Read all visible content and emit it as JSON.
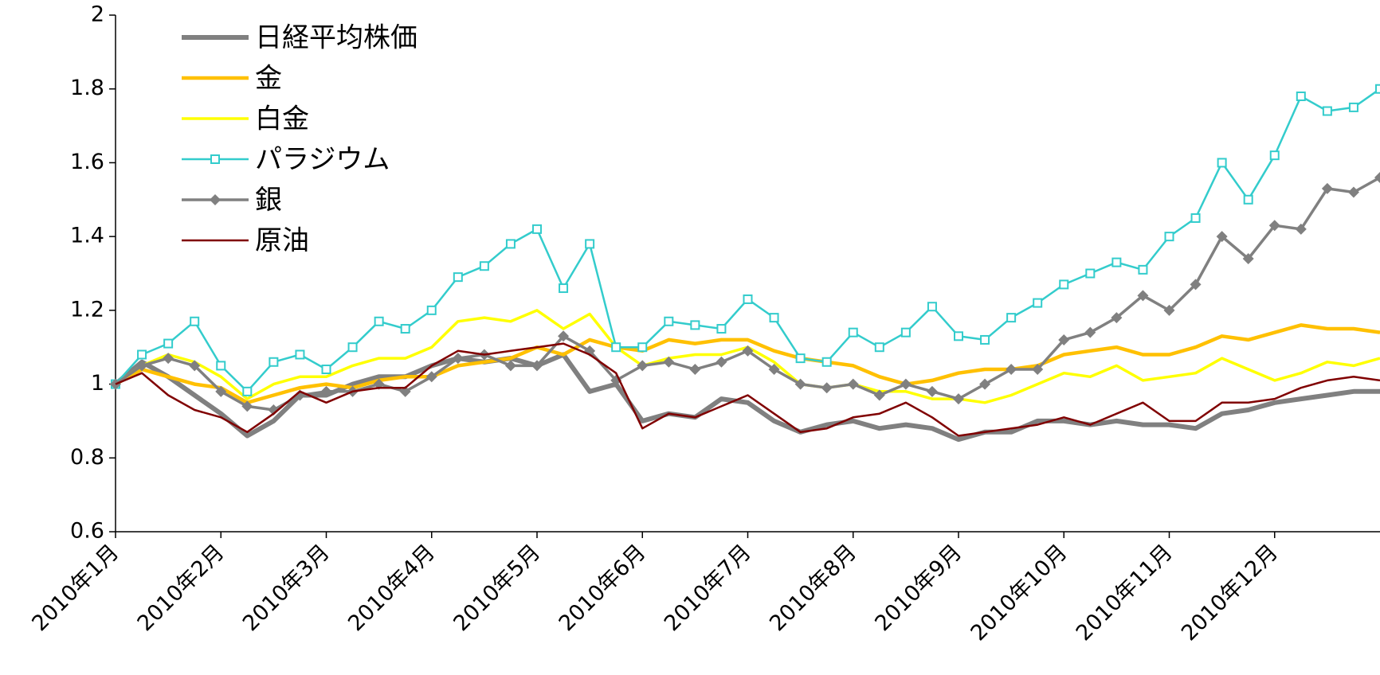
{
  "chart_data": {
    "type": "line",
    "categories": [
      "2010年1月",
      null,
      null,
      null,
      "2010年2月",
      null,
      null,
      null,
      "2010年3月",
      null,
      null,
      null,
      "2010年4月",
      null,
      null,
      null,
      "2010年5月",
      null,
      null,
      null,
      "2010年6月",
      null,
      null,
      null,
      "2010年7月",
      null,
      null,
      null,
      "2010年8月",
      null,
      null,
      null,
      "2010年9月",
      null,
      null,
      null,
      "2010年10月",
      null,
      null,
      null,
      "2010年11月",
      null,
      null,
      null,
      "2010年12月",
      null,
      null,
      null,
      null
    ],
    "ylim": [
      0.6,
      2
    ],
    "yticks": [
      0.6,
      0.8,
      1,
      1.2,
      1.4,
      1.6,
      1.8,
      2
    ],
    "legend": "upper-left",
    "series": [
      {
        "name": "日経平均株価",
        "color": "#808080",
        "values": [
          1.0,
          1.06,
          1.02,
          0.97,
          0.92,
          0.86,
          0.9,
          0.97,
          0.97,
          1.0,
          1.02,
          1.02,
          1.05,
          1.07,
          1.06,
          1.07,
          1.05,
          1.08,
          0.98,
          1.0,
          0.9,
          0.92,
          0.91,
          0.96,
          0.95,
          0.9,
          0.87,
          0.89,
          0.9,
          0.88,
          0.89,
          0.88,
          0.85,
          0.87,
          0.87,
          0.9,
          0.9,
          0.89,
          0.9,
          0.89,
          0.89,
          0.88,
          0.92,
          0.93,
          0.95,
          0.96,
          0.97,
          0.98,
          0.98
        ]
      },
      {
        "name": "金",
        "color": "#ffc000",
        "values": [
          1.0,
          1.04,
          1.02,
          1.0,
          0.99,
          0.95,
          0.97,
          0.99,
          1.0,
          0.99,
          1.01,
          1.02,
          1.02,
          1.05,
          1.06,
          1.07,
          1.1,
          1.08,
          1.12,
          1.1,
          1.09,
          1.12,
          1.11,
          1.12,
          1.12,
          1.09,
          1.07,
          1.06,
          1.05,
          1.02,
          1.0,
          1.01,
          1.03,
          1.04,
          1.04,
          1.05,
          1.08,
          1.09,
          1.1,
          1.08,
          1.08,
          1.1,
          1.13,
          1.12,
          1.14,
          1.16,
          1.15,
          1.15,
          1.14
        ]
      },
      {
        "name": "白金",
        "color": "#ffff00",
        "values": [
          1.0,
          1.05,
          1.08,
          1.06,
          1.02,
          0.96,
          1.0,
          1.02,
          1.02,
          1.05,
          1.07,
          1.07,
          1.1,
          1.17,
          1.18,
          1.17,
          1.2,
          1.15,
          1.19,
          1.1,
          1.05,
          1.07,
          1.08,
          1.08,
          1.1,
          1.06,
          1.0,
          0.99,
          1.0,
          0.98,
          0.98,
          0.96,
          0.96,
          0.95,
          0.97,
          1.0,
          1.03,
          1.02,
          1.05,
          1.01,
          1.02,
          1.03,
          1.07,
          1.04,
          1.01,
          1.03,
          1.06,
          1.05,
          1.07
        ]
      },
      {
        "name": "パラジウム",
        "color": "#33cccc",
        "marker": "square",
        "values": [
          1.0,
          1.08,
          1.11,
          1.17,
          1.05,
          0.98,
          1.06,
          1.08,
          1.04,
          1.1,
          1.17,
          1.15,
          1.2,
          1.29,
          1.32,
          1.38,
          1.42,
          1.26,
          1.38,
          1.1,
          1.1,
          1.17,
          1.16,
          1.15,
          1.23,
          1.18,
          1.07,
          1.06,
          1.14,
          1.1,
          1.14,
          1.21,
          1.13,
          1.12,
          1.18,
          1.22,
          1.27,
          1.3,
          1.33,
          1.31,
          1.4,
          1.45,
          1.6,
          1.5,
          1.62,
          1.78,
          1.74,
          1.75,
          1.8
        ]
      },
      {
        "name": "銀",
        "color": "#808080",
        "marker": "diamond",
        "values": [
          1.0,
          1.05,
          1.07,
          1.05,
          0.98,
          0.94,
          0.93,
          0.97,
          0.98,
          0.98,
          1.0,
          0.98,
          1.02,
          1.07,
          1.08,
          1.05,
          1.05,
          1.13,
          1.09,
          1.01,
          1.05,
          1.06,
          1.04,
          1.06,
          1.09,
          1.04,
          1.0,
          0.99,
          1.0,
          0.97,
          1.0,
          0.98,
          0.96,
          1.0,
          1.04,
          1.04,
          1.12,
          1.14,
          1.18,
          1.24,
          1.2,
          1.27,
          1.4,
          1.34,
          1.43,
          1.42,
          1.53,
          1.52,
          1.56
        ]
      },
      {
        "name": "原油",
        "color": "#800000",
        "values": [
          1.0,
          1.03,
          0.97,
          0.93,
          0.91,
          0.87,
          0.92,
          0.98,
          0.95,
          0.98,
          0.99,
          0.99,
          1.05,
          1.09,
          1.08,
          1.09,
          1.1,
          1.11,
          1.08,
          1.03,
          0.88,
          0.92,
          0.91,
          0.94,
          0.97,
          0.92,
          0.87,
          0.88,
          0.91,
          0.92,
          0.95,
          0.91,
          0.86,
          0.87,
          0.88,
          0.89,
          0.91,
          0.89,
          0.92,
          0.95,
          0.9,
          0.9,
          0.95,
          0.95,
          0.96,
          0.99,
          1.01,
          1.02,
          1.01
        ]
      }
    ]
  }
}
